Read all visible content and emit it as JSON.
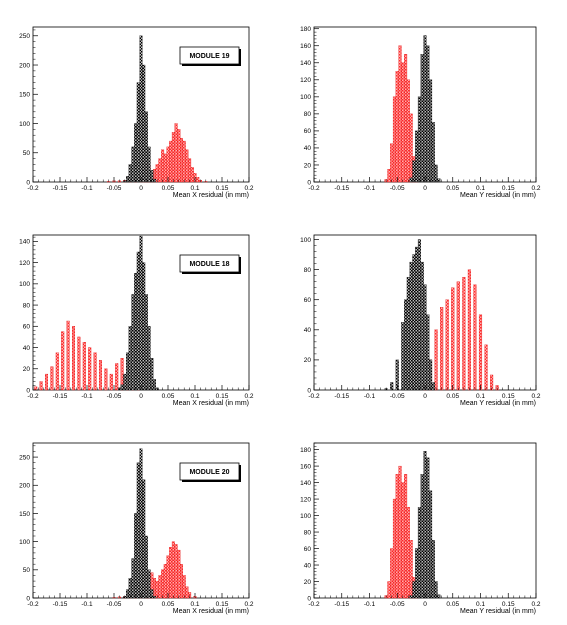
{
  "colors": {
    "module_hist": "#ff3b3b",
    "ref_hist": "#000000",
    "axis": "#000000",
    "background": "#ffffff"
  },
  "chart_data": [
    {
      "type": "bar",
      "xlabel": "Mean X residual (in mm)",
      "ylabel": "",
      "xlim": [
        -0.2,
        0.2
      ],
      "ylim": [
        0,
        265
      ],
      "xticks": [
        "-0.2",
        "-0.15",
        "-0.1",
        "-0.05",
        "0",
        "0.05",
        "0.1",
        "0.15",
        "0.2"
      ],
      "yticks": [
        "0",
        "50",
        "100",
        "150",
        "200",
        "250"
      ],
      "legend": "MODULE 19",
      "legend_position": "top-right",
      "series": [
        {
          "color": "red",
          "x": [
            -0.06,
            -0.05,
            -0.04,
            -0.03,
            -0.02,
            -0.01,
            0.0,
            0.005,
            0.01,
            0.015,
            0.02,
            0.025,
            0.03,
            0.035,
            0.04,
            0.045,
            0.05,
            0.055,
            0.06,
            0.065,
            0.07,
            0.075,
            0.08,
            0.085,
            0.09,
            0.095,
            0.1,
            0.105,
            0.11,
            0.12
          ],
          "values": [
            1,
            2,
            2,
            3,
            4,
            6,
            10,
            20,
            32,
            28,
            18,
            22,
            30,
            40,
            55,
            48,
            60,
            70,
            85,
            100,
            90,
            75,
            70,
            55,
            40,
            25,
            15,
            8,
            3,
            1
          ]
        },
        {
          "color": "black",
          "x": [
            -0.03,
            -0.025,
            -0.02,
            -0.015,
            -0.01,
            -0.005,
            0.0,
            0.005,
            0.01,
            0.015,
            0.02,
            0.025
          ],
          "values": [
            2,
            10,
            30,
            60,
            100,
            170,
            250,
            200,
            120,
            60,
            20,
            5
          ]
        }
      ]
    },
    {
      "type": "bar",
      "xlabel": "Mean Y residual (in mm)",
      "ylabel": "",
      "xlim": [
        -0.2,
        0.2
      ],
      "ylim": [
        0,
        182
      ],
      "xticks": [
        "-0.2",
        "-0.15",
        "-0.1",
        "-0.05",
        "0",
        "0.05",
        "0.1",
        "0.15",
        "0.2"
      ],
      "yticks": [
        "0",
        "20",
        "40",
        "60",
        "80",
        "100",
        "120",
        "140",
        "160",
        "180"
      ],
      "series": [
        {
          "color": "red",
          "x": [
            -0.07,
            -0.065,
            -0.06,
            -0.055,
            -0.05,
            -0.045,
            -0.04,
            -0.035,
            -0.03,
            -0.025,
            -0.02,
            -0.015
          ],
          "values": [
            3,
            15,
            45,
            100,
            130,
            160,
            140,
            150,
            120,
            80,
            30,
            5
          ]
        },
        {
          "color": "black",
          "x": [
            -0.025,
            -0.02,
            -0.015,
            -0.01,
            -0.005,
            0.0,
            0.005,
            0.01,
            0.015,
            0.02,
            0.025
          ],
          "values": [
            5,
            25,
            60,
            100,
            150,
            172,
            160,
            120,
            70,
            20,
            4
          ]
        }
      ]
    },
    {
      "type": "bar",
      "xlabel": "Mean X residual (in mm)",
      "ylabel": "",
      "xlim": [
        -0.2,
        0.2
      ],
      "ylim": [
        0,
        146
      ],
      "xticks": [
        "-0.2",
        "-0.15",
        "-0.1",
        "-0.05",
        "0",
        "0.05",
        "0.1",
        "0.15",
        "0.2"
      ],
      "yticks": [
        "0",
        "20",
        "40",
        "60",
        "80",
        "100",
        "120",
        "140"
      ],
      "legend": "MODULE 18",
      "legend_position": "top-right",
      "series": [
        {
          "color": "red",
          "x": [
            -0.195,
            -0.185,
            -0.175,
            -0.165,
            -0.155,
            -0.145,
            -0.135,
            -0.125,
            -0.115,
            -0.105,
            -0.095,
            -0.085,
            -0.075,
            -0.065,
            -0.055,
            -0.045,
            -0.035,
            -0.025,
            -0.015,
            -0.005
          ],
          "values": [
            3,
            8,
            15,
            22,
            35,
            55,
            65,
            60,
            50,
            45,
            40,
            35,
            28,
            20,
            15,
            25,
            30,
            15,
            5,
            1
          ]
        },
        {
          "color": "black",
          "x": [
            -0.04,
            -0.035,
            -0.03,
            -0.025,
            -0.02,
            -0.015,
            -0.01,
            -0.005,
            0.0,
            0.005,
            0.01,
            0.015,
            0.02,
            0.025,
            0.03
          ],
          "values": [
            2,
            5,
            15,
            35,
            60,
            90,
            110,
            130,
            145,
            120,
            90,
            60,
            30,
            10,
            2
          ]
        }
      ]
    },
    {
      "type": "bar",
      "xlabel": "Mean Y residual (in mm)",
      "ylabel": "",
      "xlim": [
        -0.2,
        0.2
      ],
      "ylim": [
        0,
        103
      ],
      "xticks": [
        "-0.2",
        "-0.15",
        "-0.1",
        "-0.05",
        "0",
        "0.05",
        "0.1",
        "0.15",
        "0.2"
      ],
      "yticks": [
        "0",
        "20",
        "40",
        "60",
        "80",
        "100"
      ],
      "series": [
        {
          "color": "red",
          "x": [
            0.0,
            0.01,
            0.02,
            0.03,
            0.04,
            0.05,
            0.06,
            0.07,
            0.08,
            0.09,
            0.1,
            0.11,
            0.12,
            0.13
          ],
          "values": [
            5,
            20,
            40,
            55,
            60,
            68,
            72,
            75,
            80,
            70,
            50,
            30,
            10,
            3
          ]
        },
        {
          "color": "black",
          "x": [
            -0.07,
            -0.06,
            -0.05,
            -0.04,
            -0.035,
            -0.03,
            -0.025,
            -0.02,
            -0.015,
            -0.01,
            -0.005,
            0.0,
            0.005,
            0.01,
            0.015
          ],
          "values": [
            1,
            5,
            20,
            45,
            60,
            75,
            85,
            90,
            95,
            100,
            85,
            70,
            50,
            20,
            5
          ]
        }
      ]
    },
    {
      "type": "bar",
      "xlabel": "Mean X residual (in mm)",
      "ylabel": "",
      "xlim": [
        -0.2,
        0.2
      ],
      "ylim": [
        0,
        275
      ],
      "xticks": [
        "-0.2",
        "-0.15",
        "-0.1",
        "-0.05",
        "0",
        "0.05",
        "0.1",
        "0.15",
        "0.2"
      ],
      "yticks": [
        "0",
        "50",
        "100",
        "150",
        "200",
        "250"
      ],
      "legend": "MODULE 20",
      "legend_position": "top-right",
      "series": [
        {
          "color": "red",
          "x": [
            -0.05,
            -0.04,
            -0.03,
            -0.02,
            -0.01,
            0.0,
            0.01,
            0.015,
            0.02,
            0.025,
            0.03,
            0.035,
            0.04,
            0.045,
            0.05,
            0.055,
            0.06,
            0.065,
            0.07,
            0.075,
            0.08,
            0.085,
            0.09,
            0.1
          ],
          "values": [
            1,
            2,
            3,
            5,
            8,
            12,
            20,
            38,
            45,
            35,
            30,
            40,
            50,
            60,
            75,
            90,
            100,
            95,
            85,
            60,
            40,
            20,
            10,
            3
          ]
        },
        {
          "color": "black",
          "x": [
            -0.03,
            -0.025,
            -0.02,
            -0.015,
            -0.01,
            -0.005,
            0.0,
            0.005,
            0.01,
            0.015,
            0.02,
            0.025
          ],
          "values": [
            3,
            15,
            35,
            70,
            150,
            240,
            265,
            210,
            110,
            50,
            15,
            3
          ]
        }
      ]
    },
    {
      "type": "bar",
      "xlabel": "Mean Y residual (in mm)",
      "ylabel": "",
      "xlim": [
        -0.2,
        0.2
      ],
      "ylim": [
        0,
        188
      ],
      "xticks": [
        "-0.2",
        "-0.15",
        "-0.1",
        "-0.05",
        "0",
        "0.05",
        "0.1",
        "0.15",
        "0.2"
      ],
      "yticks": [
        "0",
        "20",
        "40",
        "60",
        "80",
        "100",
        "120",
        "140",
        "160",
        "180"
      ],
      "series": [
        {
          "color": "red",
          "x": [
            -0.07,
            -0.065,
            -0.06,
            -0.055,
            -0.05,
            -0.045,
            -0.04,
            -0.035,
            -0.03,
            -0.025,
            -0.02,
            -0.015
          ],
          "values": [
            3,
            20,
            60,
            120,
            150,
            160,
            140,
            150,
            110,
            70,
            25,
            5
          ]
        },
        {
          "color": "black",
          "x": [
            -0.025,
            -0.02,
            -0.015,
            -0.01,
            -0.005,
            0.0,
            0.005,
            0.01,
            0.015,
            0.02,
            0.025
          ],
          "values": [
            3,
            20,
            60,
            110,
            150,
            178,
            170,
            130,
            70,
            20,
            4
          ]
        }
      ]
    }
  ]
}
